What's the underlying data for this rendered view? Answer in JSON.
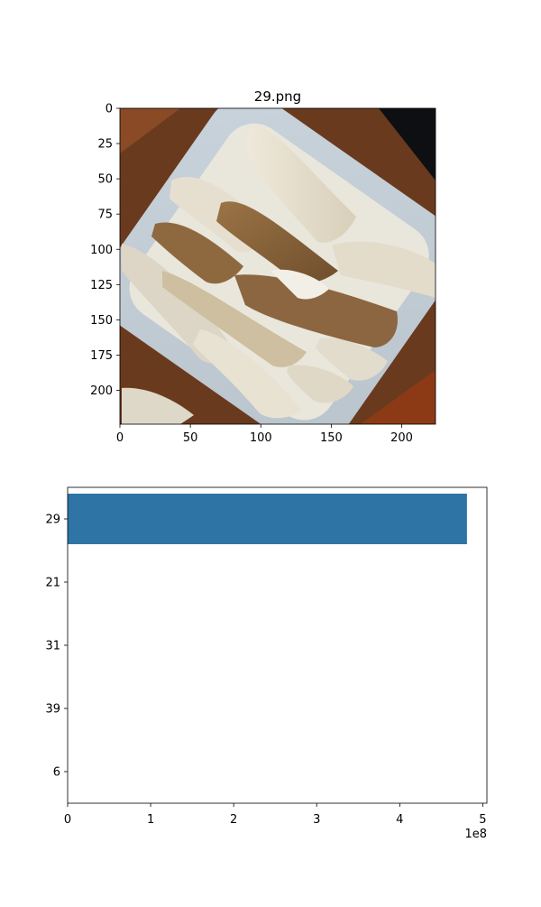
{
  "chart_data": [
    {
      "type": "image",
      "title": "29.png",
      "xlim": [
        0,
        224
      ],
      "ylim": [
        224,
        0
      ],
      "xticks": [
        0,
        50,
        100,
        150,
        200
      ],
      "yticks": [
        0,
        25,
        50,
        75,
        100,
        125,
        150,
        175,
        200
      ],
      "image_content": "potato-wedges-photo"
    },
    {
      "type": "bar",
      "orientation": "horizontal",
      "categories": [
        "29",
        "21",
        "31",
        "39",
        "6"
      ],
      "values": [
        481000000,
        0,
        0,
        0,
        0
      ],
      "xlim": [
        0,
        505000000
      ],
      "xticks": [
        0,
        1,
        2,
        3,
        4,
        5
      ],
      "offset_label": "1e8",
      "bar_color": "#2e75a6"
    }
  ]
}
